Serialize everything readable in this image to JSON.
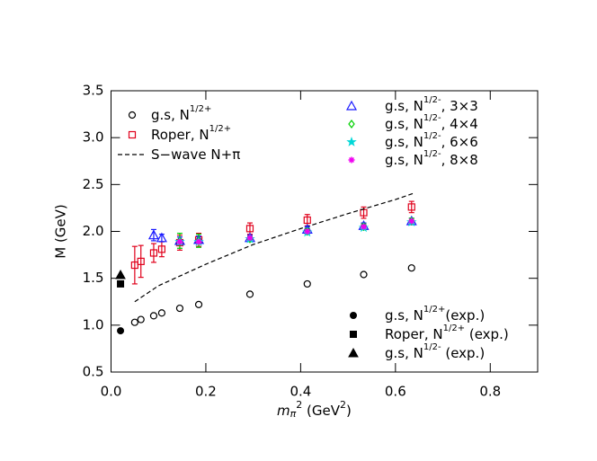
{
  "chart_data": {
    "type": "scatter",
    "ylabel": "M (GeV)",
    "xlabel": {
      "main": "m",
      "sub": "π",
      "sup": "2",
      "unit": " (GeV",
      "unit_sup": "2",
      "close": ")"
    },
    "xlim": [
      0,
      0.9
    ],
    "ylim": [
      0.5,
      3.5
    ],
    "xticks": [
      {
        "value": 0,
        "label": "0.0"
      },
      0.2,
      0.4,
      0.6,
      0.8
    ],
    "yticks": [
      0.5,
      {
        "value": 1,
        "label": "1.0"
      },
      1.5,
      {
        "value": 2,
        "label": "2.0"
      },
      2.5,
      {
        "value": 3,
        "label": "3.0"
      },
      3.5
    ],
    "series": [
      {
        "name": "g.s, N",
        "name_sup": "1/2+",
        "marker": "circle-open",
        "color": "#000000",
        "legend": "upper left",
        "x": [
          0.05,
          0.063,
          0.09,
          0.107,
          0.145,
          0.185,
          0.293,
          0.414,
          0.533,
          0.634
        ],
        "values": [
          1.03,
          1.06,
          1.1,
          1.13,
          1.18,
          1.22,
          1.33,
          1.44,
          1.54,
          1.61
        ]
      },
      {
        "name": "Roper, N",
        "name_sup": "1/2+",
        "marker": "square-open",
        "color": "#e0001b",
        "legend": "upper left",
        "x": [
          0.05,
          0.063,
          0.09,
          0.107,
          0.145,
          0.185,
          0.293,
          0.414,
          0.533,
          0.634
        ],
        "values": [
          1.64,
          1.68,
          1.77,
          1.81,
          1.88,
          1.91,
          2.03,
          2.12,
          2.2,
          2.26
        ],
        "errors": [
          0.2,
          0.17,
          0.1,
          0.08,
          0.08,
          0.07,
          0.06,
          0.06,
          0.06,
          0.06
        ]
      },
      {
        "name": "S−wave N+π",
        "marker": "dashed-line",
        "color": "#000000",
        "legend": "upper left",
        "x": [
          0.05,
          0.1,
          0.2,
          0.3,
          0.4,
          0.5,
          0.6,
          0.64
        ],
        "values": [
          1.25,
          1.42,
          1.65,
          1.86,
          2.03,
          2.19,
          2.34,
          2.41
        ]
      },
      {
        "name": "g.s, N",
        "name_sup": "1/2-",
        "name_tail": ", 3×3",
        "marker": "triangle-open",
        "color": "#1a1aff",
        "legend": "upper right",
        "x": [
          0.09,
          0.107,
          0.145,
          0.185,
          0.293,
          0.414,
          0.533,
          0.634
        ],
        "values": [
          1.96,
          1.93,
          1.9,
          1.91,
          1.93,
          2.02,
          2.06,
          2.11
        ],
        "errors": [
          0.06,
          0.04,
          0.04,
          0.04,
          0.03,
          0.03,
          0.03,
          0.03
        ]
      },
      {
        "name": "g.s, N",
        "name_sup": "1/2-",
        "name_tail": ", 4×4",
        "marker": "diamond-open",
        "color": "#00d000",
        "legend": "upper right",
        "x": [
          0.145,
          0.185,
          0.293,
          0.414,
          0.533,
          0.634
        ],
        "values": [
          1.9,
          1.9,
          1.92,
          2.0,
          2.05,
          2.11
        ],
        "errors": [
          0.08,
          0.07,
          0.03,
          0.03,
          0.03,
          0.03
        ]
      },
      {
        "name": "g.s, N",
        "name_sup": "1/2-",
        "name_tail": ", 6×6",
        "marker": "star",
        "color": "#00d8d8",
        "legend": "upper right",
        "x": [
          0.145,
          0.185,
          0.293,
          0.414,
          0.533,
          0.634
        ],
        "values": [
          1.89,
          1.89,
          1.92,
          1.99,
          2.04,
          2.1
        ]
      },
      {
        "name": "g.s, N",
        "name_sup": "1/2-",
        "name_tail": ", 8×8",
        "marker": "asterisk",
        "color": "#f000f0",
        "legend": "upper right",
        "x": [
          0.145,
          0.185,
          0.293,
          0.414,
          0.533,
          0.634
        ],
        "values": [
          1.89,
          1.89,
          1.93,
          2.0,
          2.05,
          2.11
        ]
      },
      {
        "name": "g.s, N",
        "name_sup": "1/2+",
        "name_tail": "(exp.)",
        "marker": "circle-filled",
        "color": "#000000",
        "legend": "lower right",
        "x": [
          0.02
        ],
        "values": [
          0.94
        ]
      },
      {
        "name": "Roper, N",
        "name_sup": "1/2+",
        "name_tail": " (exp.)",
        "marker": "square-filled",
        "color": "#000000",
        "legend": "lower right",
        "x": [
          0.02
        ],
        "values": [
          1.44
        ]
      },
      {
        "name": "g.s, N",
        "name_sup": "1/2-",
        "name_tail": " (exp.)",
        "marker": "triangle-filled",
        "color": "#000000",
        "legend": "lower right",
        "x": [
          0.02
        ],
        "values": [
          1.535
        ]
      }
    ]
  }
}
